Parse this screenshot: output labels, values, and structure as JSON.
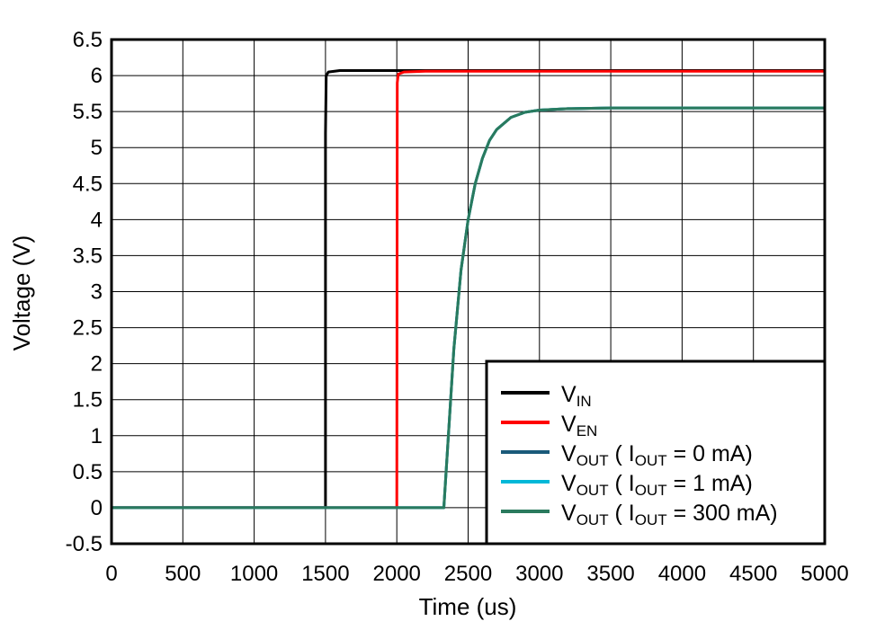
{
  "chart_data": {
    "type": "line",
    "xlabel": "Time (us)",
    "ylabel": "Voltage (V)",
    "xlim": [
      0,
      5000
    ],
    "ylim": [
      -0.5,
      6.5
    ],
    "xticks": [
      0,
      500,
      1000,
      1500,
      2000,
      2500,
      3000,
      3500,
      4000,
      4500,
      5000
    ],
    "xtick_labels": [
      "0",
      "500",
      "1000",
      "1500",
      "2000",
      "2500",
      "3000",
      "3500",
      "4000",
      "4500",
      "5000"
    ],
    "yticks": [
      -0.5,
      0,
      0.5,
      1,
      1.5,
      2,
      2.5,
      3,
      3.5,
      4,
      4.5,
      5,
      5.5,
      6,
      6.5
    ],
    "ytick_labels": [
      "-0.5",
      "0",
      "0.5",
      "1",
      "1.5",
      "2",
      "2.5",
      "3",
      "3.5",
      "4",
      "4.5",
      "5",
      "5.5",
      "6",
      "6.5"
    ],
    "grid": true,
    "legend_position": "bottom-right",
    "series": [
      {
        "name": "VIN",
        "label_main": "V",
        "label_sub": "IN",
        "label_rest": "",
        "color": "#000000",
        "x": [
          0,
          1490,
          1500,
          1500,
          1505,
          1520,
          1600,
          1800,
          2000,
          5000
        ],
        "y": [
          0,
          0,
          0,
          5.2,
          6.0,
          6.05,
          6.07,
          6.07,
          6.07,
          6.07
        ]
      },
      {
        "name": "VEN",
        "label_main": "V",
        "label_sub": "EN",
        "label_rest": "",
        "color": "#ff0000",
        "x": [
          0,
          1995,
          2000,
          2003,
          2010,
          2050,
          2200,
          5000
        ],
        "y": [
          0,
          0,
          0,
          5.9,
          6.02,
          6.05,
          6.06,
          6.06
        ]
      },
      {
        "name": "VOUT ( IOUT = 0 mA)",
        "label_main": "V",
        "label_sub": "OUT",
        "label_rest": " ( I",
        "label_sub2": "OUT",
        "label_rest2": " = 0 mA)",
        "color": "#1a5a7a",
        "x": [
          0,
          2300,
          2330,
          2400,
          2450,
          2500,
          2550,
          2600,
          2650,
          2700,
          2800,
          2900,
          3000,
          3200,
          3500,
          4000,
          5000
        ],
        "y": [
          0,
          0,
          0,
          2.2,
          3.3,
          4.0,
          4.5,
          4.85,
          5.1,
          5.25,
          5.42,
          5.49,
          5.52,
          5.54,
          5.55,
          5.55,
          5.55
        ]
      },
      {
        "name": "VOUT ( IOUT = 1 mA)",
        "label_main": "V",
        "label_sub": "OUT",
        "label_rest": " ( I",
        "label_sub2": "OUT",
        "label_rest2": " = 1 mA)",
        "color": "#00b8d8",
        "x": [
          0,
          2300,
          2330,
          2400,
          2450,
          2500,
          2550,
          2600,
          2650,
          2700,
          2800,
          2900,
          3000,
          3200,
          3500,
          4000,
          5000
        ],
        "y": [
          0,
          0,
          0,
          2.2,
          3.3,
          4.0,
          4.5,
          4.85,
          5.1,
          5.25,
          5.42,
          5.49,
          5.52,
          5.54,
          5.55,
          5.55,
          5.55
        ]
      },
      {
        "name": "VOUT ( IOUT = 300 mA)",
        "label_main": "V",
        "label_sub": "OUT",
        "label_rest": " ( I",
        "label_sub2": "OUT",
        "label_rest2": " = 300 mA)",
        "color": "#2a7a5e",
        "x": [
          0,
          2300,
          2330,
          2400,
          2450,
          2500,
          2550,
          2600,
          2650,
          2700,
          2800,
          2900,
          3000,
          3200,
          3500,
          4000,
          5000
        ],
        "y": [
          0,
          0,
          0,
          2.2,
          3.3,
          4.0,
          4.5,
          4.85,
          5.1,
          5.25,
          5.42,
          5.49,
          5.52,
          5.54,
          5.55,
          5.55,
          5.55
        ]
      }
    ]
  }
}
